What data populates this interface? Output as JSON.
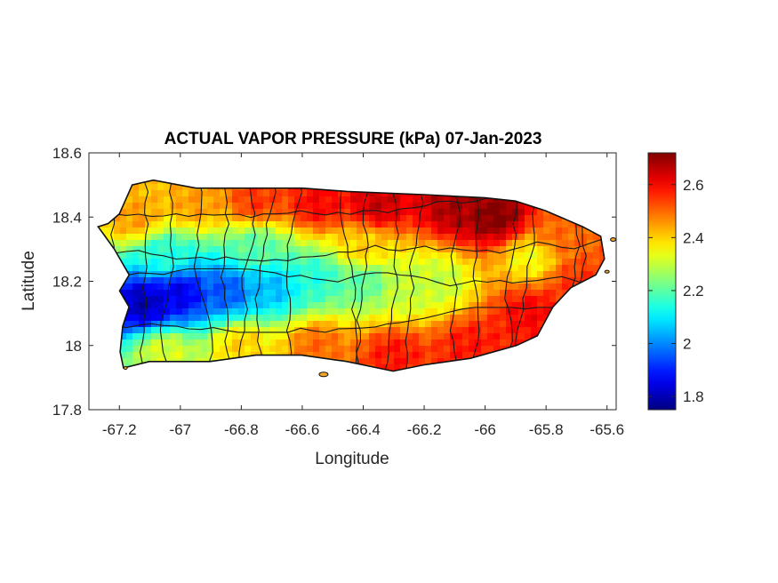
{
  "chart_data": {
    "type": "heatmap",
    "title": "ACTUAL VAPOR PRESSURE (kPa) 07-Jan-2023",
    "xlabel": "Longitude",
    "ylabel": "Latitude",
    "xlim": [
      -67.3,
      -65.57
    ],
    "ylim": [
      17.8,
      18.6
    ],
    "xticks": [
      -67.2,
      -67,
      -66.8,
      -66.6,
      -66.4,
      -66.2,
      -66,
      -65.8,
      -65.6
    ],
    "xtick_labels": [
      "-67.2",
      "-67",
      "-66.8",
      "-66.6",
      "-66.4",
      "-66.2",
      "-66",
      "-65.8",
      "-65.6"
    ],
    "yticks": [
      17.8,
      18,
      18.2,
      18.4,
      18.6
    ],
    "ytick_labels": [
      "17.8",
      "18",
      "18.2",
      "18.4",
      "18.6"
    ],
    "colorbar": {
      "colormap": "jet",
      "range": [
        1.75,
        2.72
      ],
      "ticks": [
        1.8,
        2,
        2.2,
        2.4,
        2.6
      ],
      "tick_labels": [
        "1.8",
        "2",
        "2.2",
        "2.4",
        "2.6"
      ]
    },
    "island_outline": [
      [
        -67.27,
        18.37
      ],
      [
        -67.24,
        18.38
      ],
      [
        -67.2,
        18.41
      ],
      [
        -67.16,
        18.5
      ],
      [
        -67.09,
        18.515
      ],
      [
        -66.95,
        18.49
      ],
      [
        -66.8,
        18.49
      ],
      [
        -66.6,
        18.49
      ],
      [
        -66.45,
        18.48
      ],
      [
        -66.2,
        18.47
      ],
      [
        -66.0,
        18.46
      ],
      [
        -65.9,
        18.45
      ],
      [
        -65.8,
        18.42
      ],
      [
        -65.68,
        18.37
      ],
      [
        -65.62,
        18.34
      ],
      [
        -65.61,
        18.27
      ],
      [
        -65.64,
        18.22
      ],
      [
        -65.72,
        18.18
      ],
      [
        -65.78,
        18.12
      ],
      [
        -65.83,
        18.03
      ],
      [
        -65.9,
        18.0
      ],
      [
        -66.05,
        17.96
      ],
      [
        -66.2,
        17.94
      ],
      [
        -66.3,
        17.92
      ],
      [
        -66.45,
        17.95
      ],
      [
        -66.6,
        17.97
      ],
      [
        -66.75,
        17.97
      ],
      [
        -66.9,
        17.95
      ],
      [
        -67.0,
        17.95
      ],
      [
        -67.1,
        17.95
      ],
      [
        -67.19,
        17.93
      ],
      [
        -67.2,
        17.98
      ],
      [
        -67.19,
        18.06
      ],
      [
        -67.17,
        18.12
      ],
      [
        -67.2,
        18.17
      ],
      [
        -67.17,
        18.22
      ],
      [
        -67.22,
        18.3
      ],
      [
        -67.25,
        18.34
      ]
    ],
    "field_anchors": [
      {
        "lon": -67.12,
        "lat": 18.13,
        "value": 1.8
      },
      {
        "lon": -67.0,
        "lat": 18.16,
        "value": 1.85
      },
      {
        "lon": -66.85,
        "lat": 18.17,
        "value": 1.95
      },
      {
        "lon": -66.7,
        "lat": 18.18,
        "value": 2.05
      },
      {
        "lon": -66.55,
        "lat": 18.21,
        "value": 2.15
      },
      {
        "lon": -66.4,
        "lat": 18.2,
        "value": 2.2
      },
      {
        "lon": -66.25,
        "lat": 18.18,
        "value": 2.3
      },
      {
        "lon": -66.15,
        "lat": 18.2,
        "value": 2.3
      },
      {
        "lon": -65.85,
        "lat": 18.27,
        "value": 2.35
      },
      {
        "lon": -67.15,
        "lat": 18.4,
        "value": 2.45
      },
      {
        "lon": -66.95,
        "lat": 18.44,
        "value": 2.45
      },
      {
        "lon": -66.75,
        "lat": 18.45,
        "value": 2.55
      },
      {
        "lon": -66.55,
        "lat": 18.44,
        "value": 2.6
      },
      {
        "lon": -66.35,
        "lat": 18.44,
        "value": 2.65
      },
      {
        "lon": -66.1,
        "lat": 18.43,
        "value": 2.68
      },
      {
        "lon": -65.97,
        "lat": 18.4,
        "value": 2.72
      },
      {
        "lon": -65.75,
        "lat": 18.34,
        "value": 2.5
      },
      {
        "lon": -65.7,
        "lat": 18.2,
        "value": 2.55
      },
      {
        "lon": -65.85,
        "lat": 18.1,
        "value": 2.6
      },
      {
        "lon": -66.05,
        "lat": 18.0,
        "value": 2.58
      },
      {
        "lon": -66.3,
        "lat": 17.97,
        "value": 2.58
      },
      {
        "lon": -66.55,
        "lat": 18.0,
        "value": 2.5
      },
      {
        "lon": -66.8,
        "lat": 18.0,
        "value": 2.4
      },
      {
        "lon": -67.05,
        "lat": 17.98,
        "value": 2.32
      },
      {
        "lon": -66.4,
        "lat": 18.3,
        "value": 2.4
      },
      {
        "lon": -66.75,
        "lat": 18.3,
        "value": 2.2
      },
      {
        "lon": -67.05,
        "lat": 18.28,
        "value": 2.15
      }
    ]
  }
}
